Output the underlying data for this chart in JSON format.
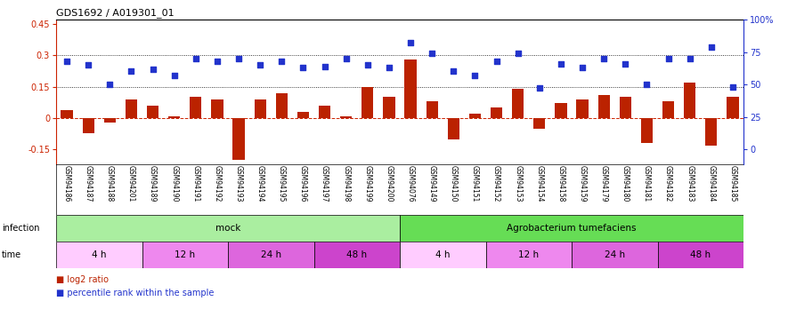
{
  "title": "GDS1692 / A019301_01",
  "samples": [
    "GSM94186",
    "GSM94187",
    "GSM94188",
    "GSM94201",
    "GSM94189",
    "GSM94190",
    "GSM94191",
    "GSM94192",
    "GSM94193",
    "GSM94194",
    "GSM94195",
    "GSM94196",
    "GSM94197",
    "GSM94198",
    "GSM94199",
    "GSM94200",
    "GSM94076",
    "GSM94149",
    "GSM94150",
    "GSM94151",
    "GSM94152",
    "GSM94153",
    "GSM94154",
    "GSM94158",
    "GSM94159",
    "GSM94179",
    "GSM94180",
    "GSM94181",
    "GSM94182",
    "GSM94183",
    "GSM94184",
    "GSM94185"
  ],
  "log2_ratio": [
    0.04,
    -0.07,
    -0.02,
    0.09,
    0.06,
    0.01,
    0.1,
    0.09,
    -0.2,
    0.09,
    0.12,
    0.03,
    0.06,
    0.01,
    0.15,
    0.1,
    0.28,
    0.08,
    -0.1,
    0.02,
    0.05,
    0.14,
    -0.05,
    0.07,
    0.09,
    0.11,
    0.1,
    -0.12,
    0.08,
    0.17,
    -0.13,
    0.1
  ],
  "percentile_rank": [
    68,
    65,
    50,
    60,
    62,
    57,
    70,
    68,
    70,
    65,
    68,
    63,
    64,
    70,
    65,
    63,
    82,
    74,
    60,
    57,
    68,
    74,
    47,
    66,
    63,
    70,
    66,
    50,
    70,
    70,
    79,
    48
  ],
  "infection_groups": [
    {
      "label": "mock",
      "start": 0,
      "end": 16,
      "color": "#aaeea0"
    },
    {
      "label": "Agrobacterium tumefaciens",
      "start": 16,
      "end": 32,
      "color": "#66dd55"
    }
  ],
  "time_groups": [
    {
      "label": "4 h",
      "start": 0,
      "end": 4,
      "color": "#ffccff"
    },
    {
      "label": "12 h",
      "start": 4,
      "end": 8,
      "color": "#ee88ee"
    },
    {
      "label": "24 h",
      "start": 8,
      "end": 12,
      "color": "#dd66dd"
    },
    {
      "label": "48 h",
      "start": 12,
      "end": 16,
      "color": "#cc44cc"
    },
    {
      "label": "4 h",
      "start": 16,
      "end": 20,
      "color": "#ffccff"
    },
    {
      "label": "12 h",
      "start": 20,
      "end": 24,
      "color": "#ee88ee"
    },
    {
      "label": "24 h",
      "start": 24,
      "end": 28,
      "color": "#dd66dd"
    },
    {
      "label": "48 h",
      "start": 28,
      "end": 32,
      "color": "#cc44cc"
    }
  ],
  "bar_color": "#bb2200",
  "dot_color": "#2233cc",
  "ylim_left": [
    -0.22,
    0.47
  ],
  "ylim_right": [
    -11.5,
    100
  ],
  "yticks_left": [
    -0.15,
    0.0,
    0.15,
    0.3,
    0.45
  ],
  "yticks_right": [
    0,
    25,
    50,
    75,
    100
  ],
  "hline_dotted": [
    0.15,
    0.3
  ],
  "background_color": "#ffffff",
  "bg_plot": "#ffffff"
}
